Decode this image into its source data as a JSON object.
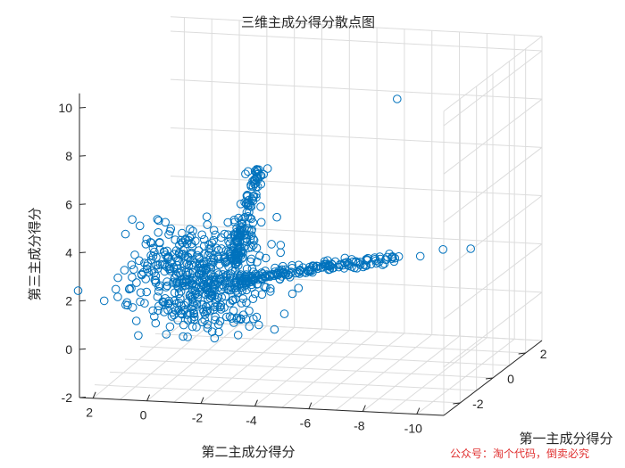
{
  "chart_data": {
    "type": "scatter3d",
    "title": "三维主成分得分散点图",
    "xlabel": "第一主成分得分",
    "ylabel": "第二主成分得分",
    "zlabel": "第三主成分得分",
    "x_ticks": [
      -2,
      0,
      2
    ],
    "y_ticks": [
      2,
      0,
      -2,
      -4,
      -6,
      -8,
      -10
    ],
    "z_ticks": [
      -2,
      0,
      2,
      4,
      6,
      8,
      10
    ],
    "xlim": [
      -3,
      3
    ],
    "ylim": [
      -11,
      2.5
    ],
    "zlim": [
      -2,
      10
    ],
    "grid": true,
    "marker": "circle",
    "marker_color": "#0072bd",
    "points_note": "approximate reconstruction of the point cloud"
  },
  "watermark": "公众号：淘个代码，倒卖必究"
}
